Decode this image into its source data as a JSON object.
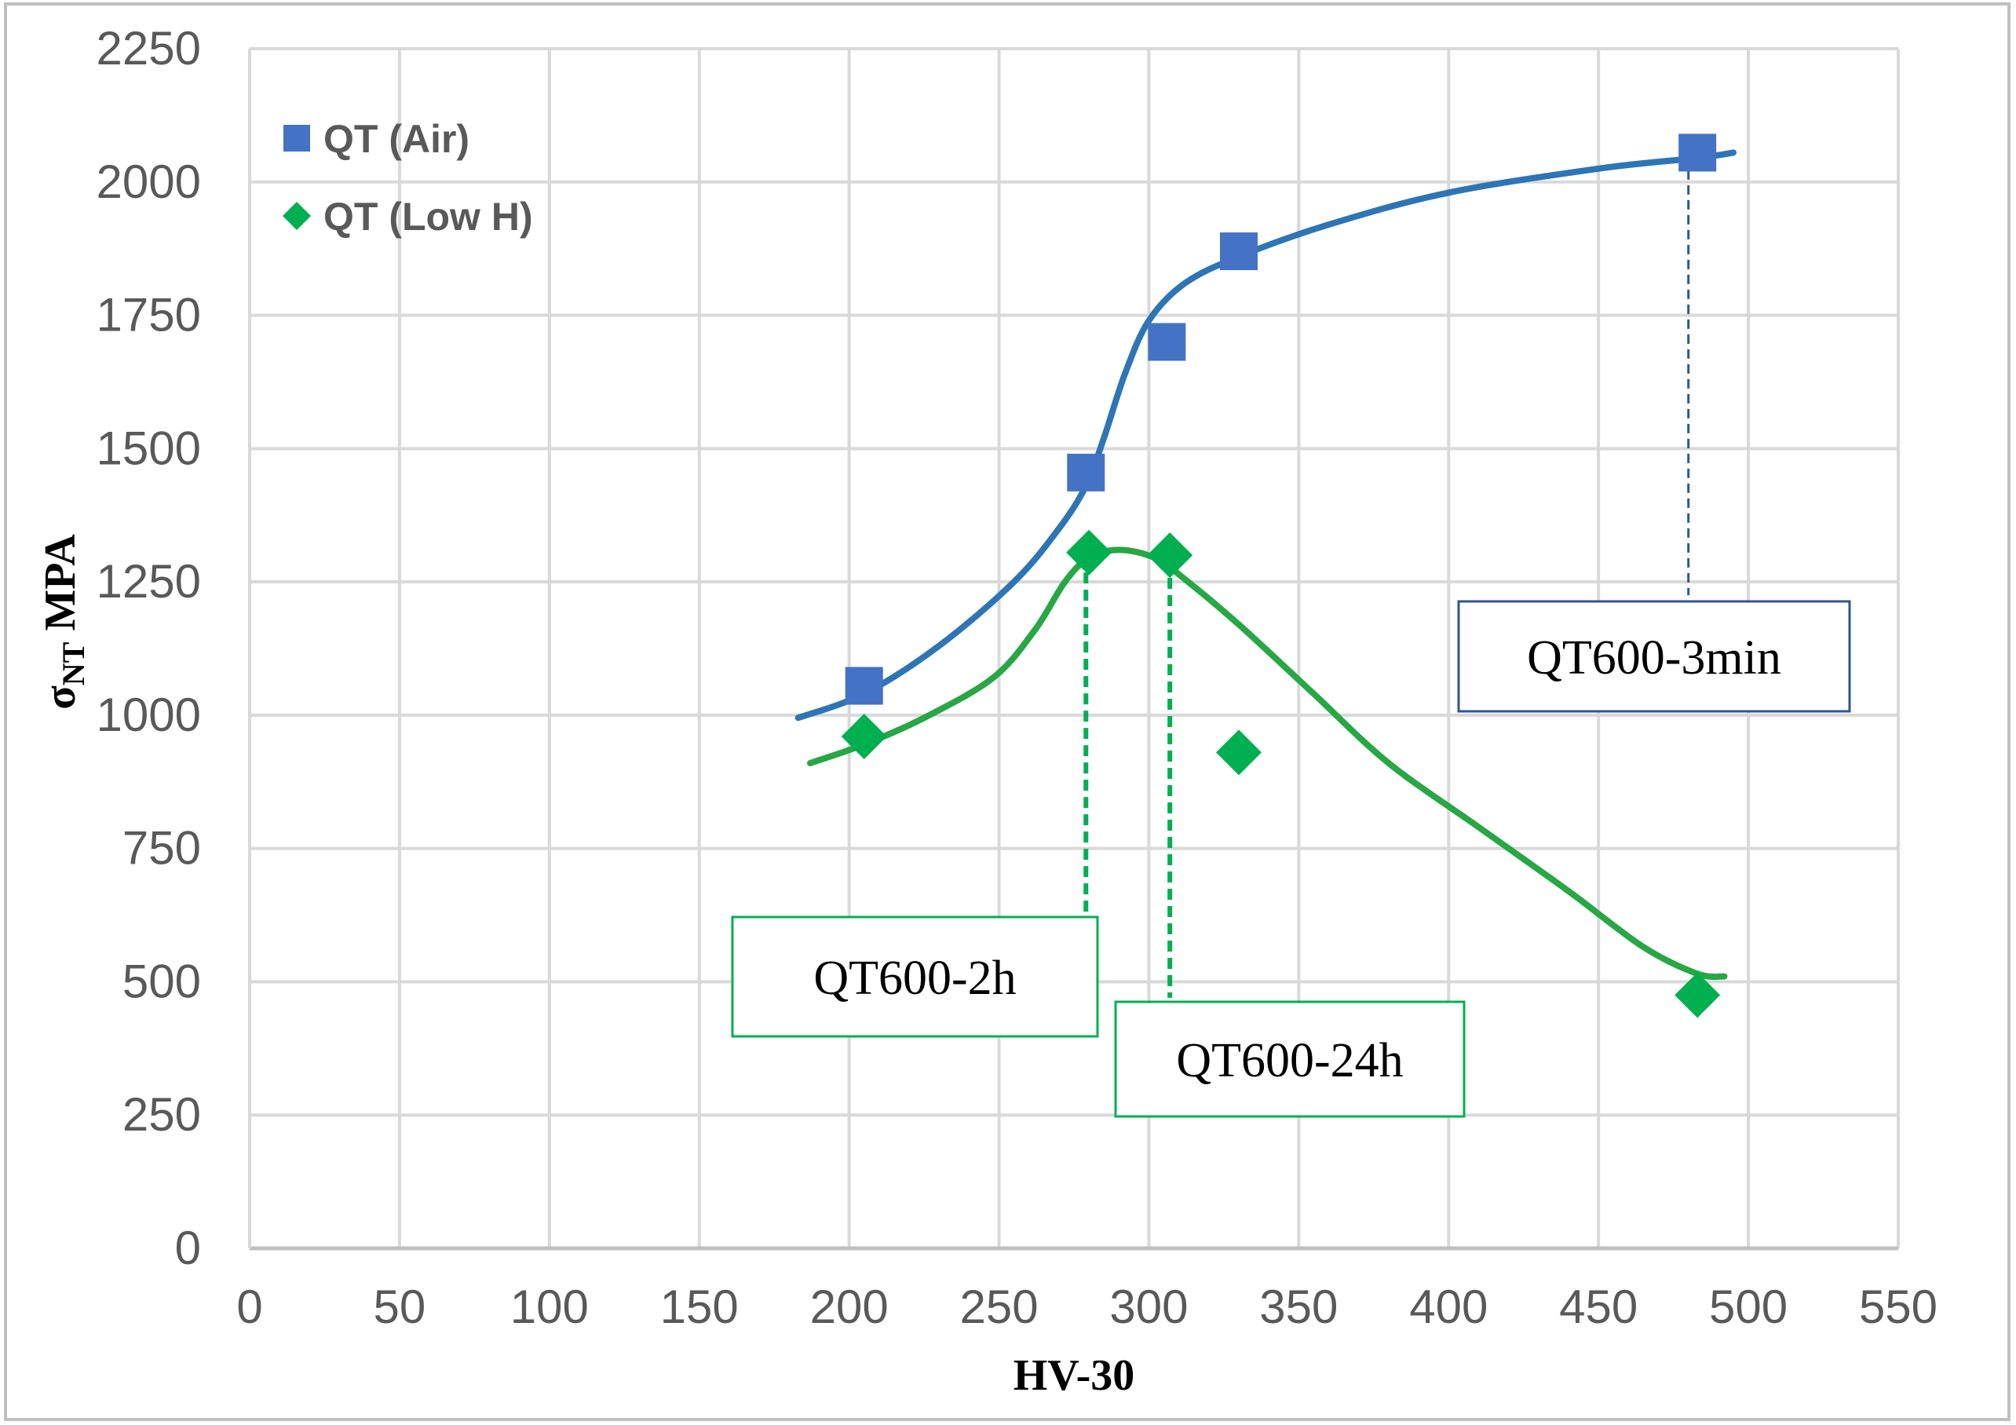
{
  "chart_data": {
    "type": "scatter",
    "title": "",
    "xlabel": "HV-30",
    "ylabel": {
      "main": "σ",
      "sub": "NT",
      "unit": " MPA"
    },
    "xlim": [
      0,
      550
    ],
    "ylim": [
      0,
      2250
    ],
    "x_ticks": [
      0,
      50,
      100,
      150,
      200,
      250,
      300,
      350,
      400,
      450,
      500,
      550
    ],
    "y_ticks": [
      0,
      250,
      500,
      750,
      1000,
      1250,
      1500,
      1750,
      2000,
      2250
    ],
    "grid": true,
    "legend_position": "top-left",
    "series": [
      {
        "name": "QT (Air)",
        "marker": "square",
        "color": "#4472C4",
        "line_color": "#2E75B6",
        "points": [
          [
            205,
            1055
          ],
          [
            279,
            1455
          ],
          [
            306,
            1700
          ],
          [
            330,
            1870
          ],
          [
            483,
            2055
          ]
        ],
        "trend": [
          [
            183,
            995
          ],
          [
            205,
            1040
          ],
          [
            230,
            1130
          ],
          [
            255,
            1250
          ],
          [
            270,
            1350
          ],
          [
            279,
            1430
          ],
          [
            285,
            1520
          ],
          [
            292,
            1640
          ],
          [
            300,
            1740
          ],
          [
            312,
            1810
          ],
          [
            330,
            1860
          ],
          [
            360,
            1920
          ],
          [
            400,
            1980
          ],
          [
            450,
            2025
          ],
          [
            483,
            2045
          ],
          [
            495,
            2055
          ]
        ]
      },
      {
        "name": "QT (Low H)",
        "marker": "diamond",
        "color": "#00B050",
        "line_color": "#28A745",
        "points": [
          [
            205,
            960
          ],
          [
            280,
            1305
          ],
          [
            307,
            1300
          ],
          [
            330,
            930
          ],
          [
            483,
            475
          ]
        ],
        "trend": [
          [
            187,
            910
          ],
          [
            205,
            945
          ],
          [
            225,
            995
          ],
          [
            248,
            1070
          ],
          [
            262,
            1160
          ],
          [
            272,
            1250
          ],
          [
            280,
            1295
          ],
          [
            290,
            1310
          ],
          [
            302,
            1295
          ],
          [
            312,
            1255
          ],
          [
            330,
            1170
          ],
          [
            355,
            1040
          ],
          [
            380,
            910
          ],
          [
            410,
            790
          ],
          [
            440,
            670
          ],
          [
            465,
            565
          ],
          [
            483,
            515
          ],
          [
            492,
            510
          ]
        ]
      }
    ],
    "annotations": [
      {
        "text": "QT600-3min",
        "x": 480,
        "y_from": 1225,
        "y_to": 2050,
        "color": "#2E5597"
      },
      {
        "text": "QT600-2h",
        "x": 279,
        "y_from": 625,
        "y_to": 1300,
        "color": "#00B050"
      },
      {
        "text": "QT600-24h",
        "x": 307,
        "y_from": 470,
        "y_to": 1290,
        "color": "#00B050"
      }
    ]
  }
}
